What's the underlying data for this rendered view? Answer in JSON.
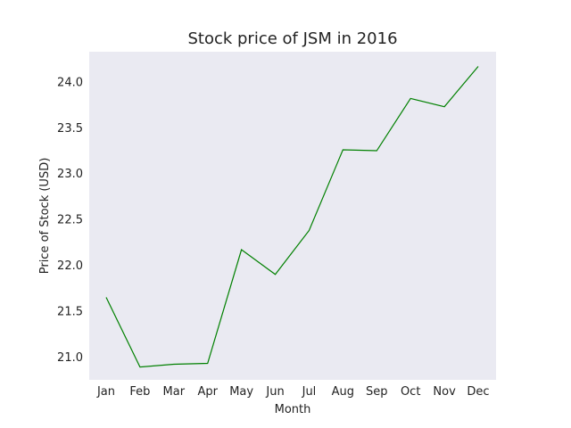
{
  "chart_data": {
    "type": "line",
    "title": "Stock price of JSM in 2016",
    "xlabel": "Month",
    "ylabel": "Price of Stock (USD)",
    "categories": [
      "Jan",
      "Feb",
      "Mar",
      "Apr",
      "May",
      "Jun",
      "Jul",
      "Aug",
      "Sep",
      "Oct",
      "Nov",
      "Dec"
    ],
    "values": [
      21.65,
      20.89,
      20.92,
      20.93,
      22.17,
      21.9,
      22.38,
      23.26,
      23.25,
      23.82,
      23.73,
      24.17
    ],
    "ylim": [
      20.75,
      24.33
    ],
    "yticks": [
      "21.0",
      "21.5",
      "22.0",
      "22.5",
      "23.0",
      "23.5",
      "24.0"
    ],
    "grid": false,
    "colors": {
      "line": "#008000",
      "plot_background": "#eaeaf2"
    }
  }
}
